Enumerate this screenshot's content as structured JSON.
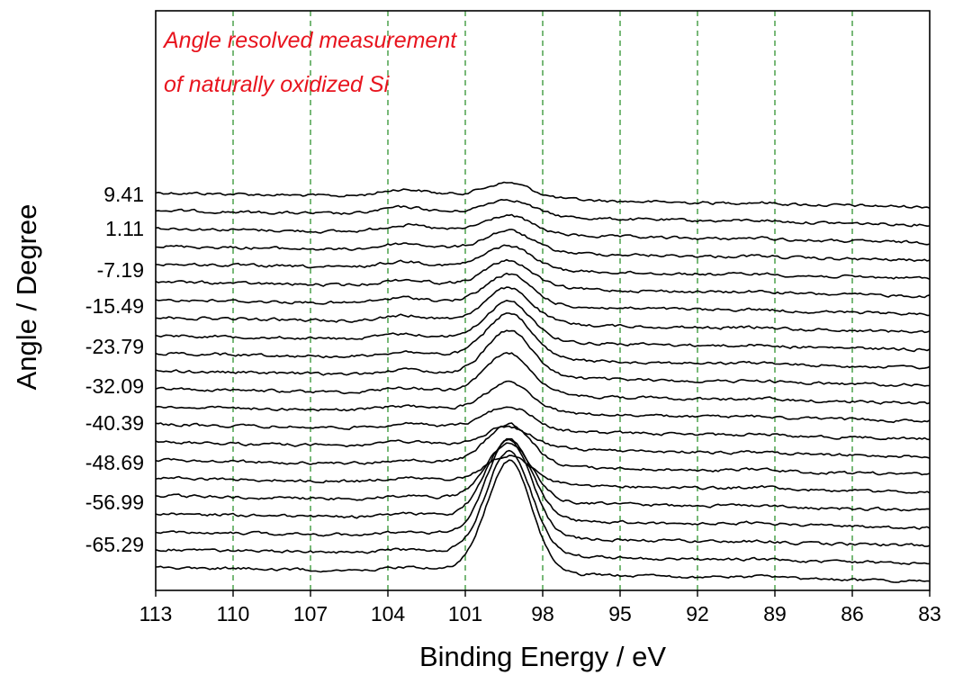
{
  "chart_data": {
    "type": "line",
    "title": "",
    "annotation": [
      "Angle resolved measurement",
      "of naturally oxidized Si"
    ],
    "xlabel": "Binding Energy / eV",
    "ylabel": "Angle / Degree",
    "xlim": [
      113,
      83
    ],
    "x_reversed": true,
    "x_ticks": [
      "113",
      "110",
      "107",
      "104",
      "101",
      "98",
      "95",
      "92",
      "89",
      "86",
      "83"
    ],
    "y_tick_labels": [
      "9.41",
      "1.11",
      "-7.19",
      "-15.49",
      "-23.79",
      "-32.09",
      "-40.39",
      "-48.69",
      "-56.99",
      "-65.29"
    ],
    "angles_deg": [
      9.41,
      1.11,
      -7.19,
      -15.49,
      -23.79,
      -32.09,
      -40.39,
      -48.69,
      -56.99,
      -65.29
    ],
    "grid": {
      "x": true,
      "y": false,
      "style": "dashed",
      "color": "#1f8a1f"
    },
    "annotation_color": "#e8141e",
    "line_color": "#000000",
    "series_count": 22,
    "series_note_free": true,
    "peaks": [
      {
        "center_eV": 99.3,
        "label": ""
      },
      {
        "center_eV": 103.4,
        "label": ""
      },
      {
        "center_eV": 89.6,
        "label": ""
      }
    ],
    "series": [
      {
        "baseline": 0.0,
        "si_peak": 0.18,
        "oxide_peak": 0.1,
        "sat_peak": 0.02
      },
      {
        "baseline": 0.0,
        "si_peak": 0.2,
        "oxide_peak": 0.1,
        "sat_peak": 0.02
      },
      {
        "baseline": 0.0,
        "si_peak": 0.22,
        "oxide_peak": 0.1,
        "sat_peak": 0.02
      },
      {
        "baseline": 0.0,
        "si_peak": 0.26,
        "oxide_peak": 0.09,
        "sat_peak": 0.02
      },
      {
        "baseline": 0.0,
        "si_peak": 0.3,
        "oxide_peak": 0.09,
        "sat_peak": 0.02
      },
      {
        "baseline": 0.0,
        "si_peak": 0.34,
        "oxide_peak": 0.08,
        "sat_peak": 0.02
      },
      {
        "baseline": 0.0,
        "si_peak": 0.4,
        "oxide_peak": 0.08,
        "sat_peak": 0.02
      },
      {
        "baseline": 0.0,
        "si_peak": 0.46,
        "oxide_peak": 0.08,
        "sat_peak": 0.02
      },
      {
        "baseline": 0.0,
        "si_peak": 0.52,
        "oxide_peak": 0.07,
        "sat_peak": 0.02
      },
      {
        "baseline": 0.0,
        "si_peak": 0.6,
        "oxide_peak": 0.07,
        "sat_peak": 0.02
      },
      {
        "baseline": 0.0,
        "si_peak": 0.62,
        "oxide_peak": 0.07,
        "sat_peak": 0.02
      },
      {
        "baseline": 0.0,
        "si_peak": 0.55,
        "oxide_peak": 0.07,
        "sat_peak": 0.02
      },
      {
        "baseline": 0.0,
        "si_peak": 0.38,
        "oxide_peak": 0.06,
        "sat_peak": 0.02
      },
      {
        "baseline": 0.0,
        "si_peak": 0.3,
        "oxide_peak": 0.06,
        "sat_peak": 0.02
      },
      {
        "baseline": 0.0,
        "si_peak": 0.26,
        "oxide_peak": 0.06,
        "sat_peak": 0.02
      },
      {
        "baseline": 0.0,
        "si_peak": 0.55,
        "oxide_peak": 0.05,
        "sat_peak": 0.03
      },
      {
        "baseline": 0.0,
        "si_peak": 0.35,
        "oxide_peak": 0.05,
        "sat_peak": 0.03
      },
      {
        "baseline": 0.0,
        "si_peak": 0.8,
        "oxide_peak": 0.05,
        "sat_peak": 0.03
      },
      {
        "baseline": 0.0,
        "si_peak": 1.1,
        "oxide_peak": 0.05,
        "sat_peak": 0.03
      },
      {
        "baseline": 0.0,
        "si_peak": 1.35,
        "oxide_peak": 0.05,
        "sat_peak": 0.02
      },
      {
        "baseline": 0.0,
        "si_peak": 1.45,
        "oxide_peak": 0.05,
        "sat_peak": 0.02
      },
      {
        "baseline": 0.0,
        "si_peak": 1.55,
        "oxide_peak": 0.05,
        "sat_peak": 0.02
      }
    ]
  }
}
